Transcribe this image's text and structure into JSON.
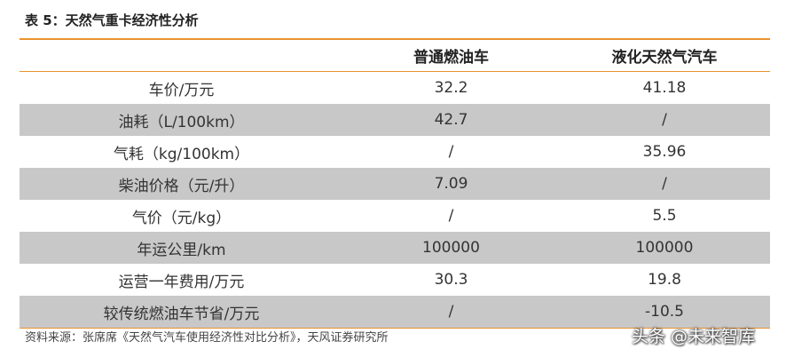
{
  "title": "表 5：天然气重卡经济性分析",
  "table": {
    "headers": [
      "",
      "普通燃油车",
      "液化天然气汽车"
    ],
    "rows": [
      [
        "车价/万元",
        "32.2",
        "41.18"
      ],
      [
        "油耗（L/100km）",
        "42.7",
        "/"
      ],
      [
        "气耗（kg/100km）",
        "/",
        "35.96"
      ],
      [
        "柴油价格（元/升）",
        "7.09",
        "/"
      ],
      [
        "气价（元/kg）",
        "/",
        "5.5"
      ],
      [
        "年运公里/km",
        "100000",
        "100000"
      ],
      [
        "运营一年费用/万元",
        "30.3",
        "19.8"
      ],
      [
        "较传统燃油车节省/万元",
        "/",
        "-10.5"
      ]
    ]
  },
  "source": "资料来源：张席席《天然气汽车使用经济性对比分析》，天风证券研究所",
  "watermark": "头条 @未来智库",
  "colors": {
    "accent_rule": "#e8932f",
    "shaded_row": "#c8c8c8"
  }
}
